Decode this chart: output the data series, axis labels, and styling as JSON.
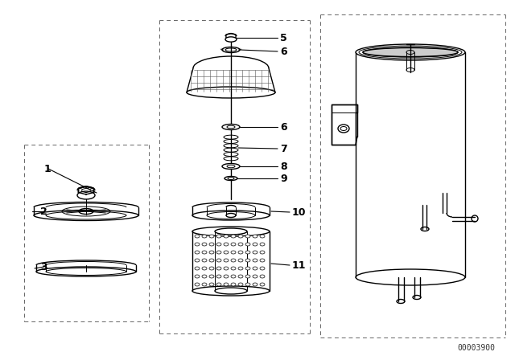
{
  "bg_color": "#ffffff",
  "line_color": "#000000",
  "label_color": "#000000",
  "watermark": "00003900",
  "label_fontsize": 9,
  "watermark_fontsize": 7
}
